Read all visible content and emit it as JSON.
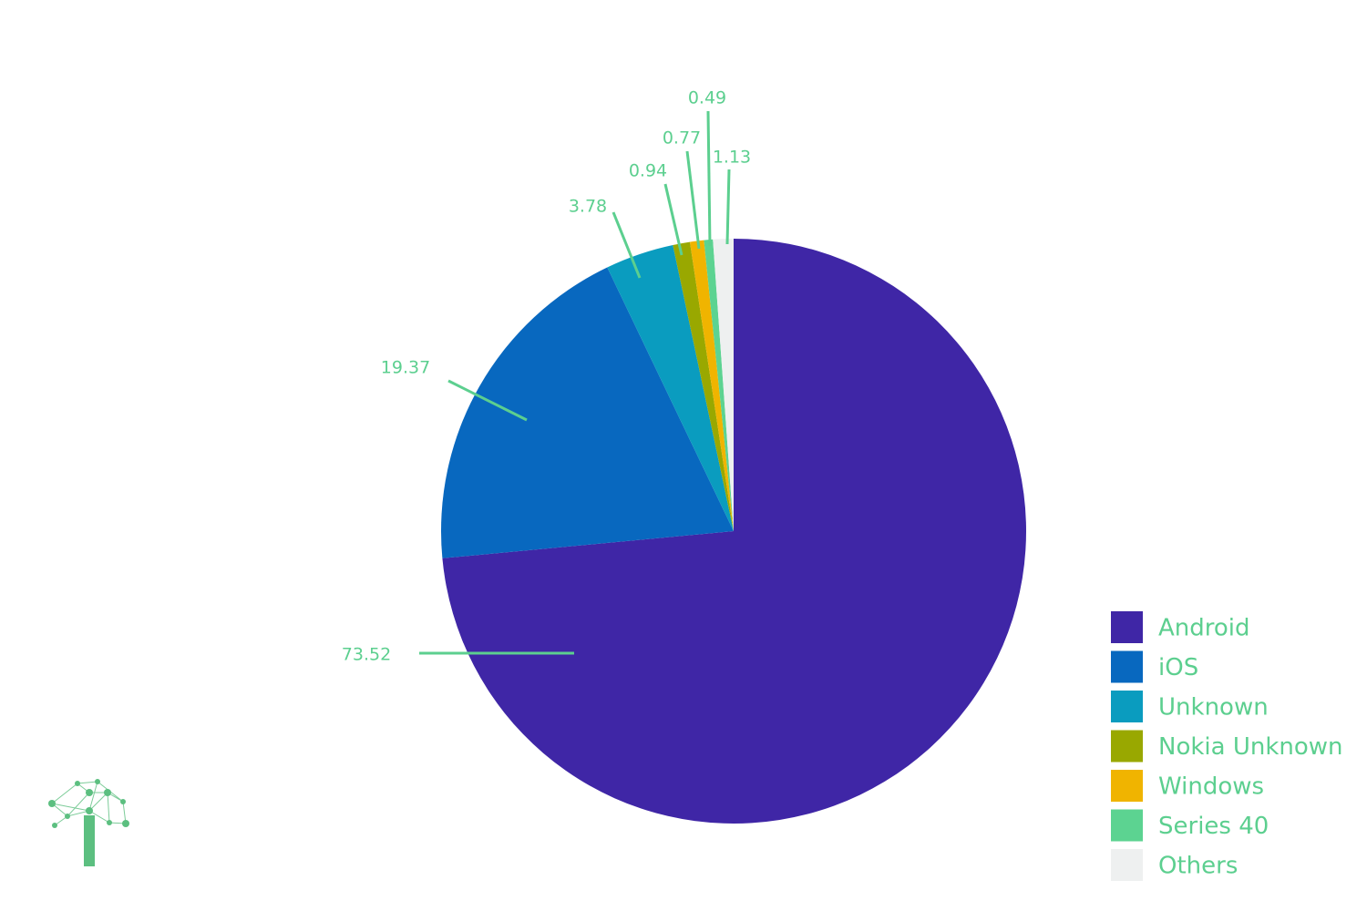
{
  "chart_data": {
    "type": "pie",
    "categories": [
      "Android",
      "iOS",
      "Unknown",
      "Nokia Unknown",
      "Windows",
      "Series 40",
      "Others"
    ],
    "values": [
      73.52,
      19.37,
      3.78,
      0.94,
      0.77,
      0.49,
      1.13
    ],
    "colors": [
      "#3f26a6",
      "#0868bf",
      "#0a9cbf",
      "#99a800",
      "#f0b400",
      "#5cd391",
      "#eef0f0"
    ],
    "legend": "bottom-right"
  }
}
